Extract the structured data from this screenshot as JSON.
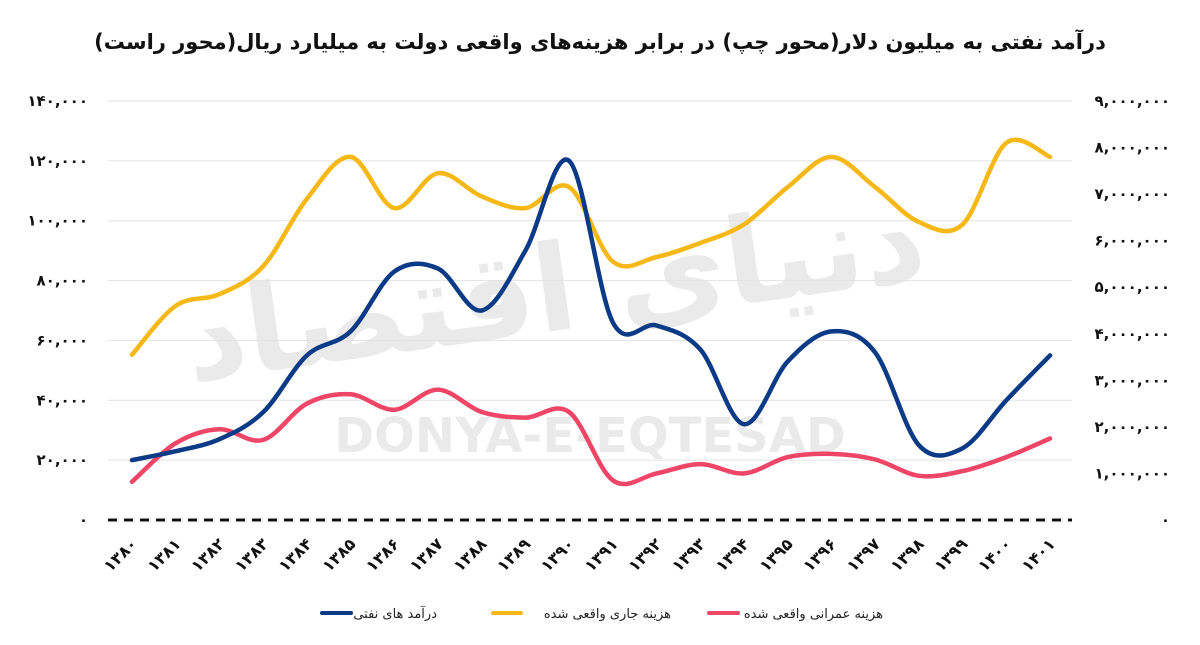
{
  "chart_data": {
    "type": "line",
    "title": "درآمد نفتی به میلیون دلار(محور چپ) در برابر هزینه‌های واقعی دولت به میلیارد ریال(محور راست)",
    "categories": [
      "۱۳۸۰",
      "۱۳۸۱",
      "۱۳۸۲",
      "۱۳۸۳",
      "۱۳۸۴",
      "۱۳۸۵",
      "۱۳۸۶",
      "۱۳۸۷",
      "۱۳۸۸",
      "۱۳۸۹",
      "۱۳۹۰",
      "۱۳۹۱",
      "۱۳۹۲",
      "۱۳۹۳",
      "۱۳۹۴",
      "۱۳۹۵",
      "۱۳۹۶",
      "۱۳۹۷",
      "۱۳۹۸",
      "۱۳۹۹",
      "۱۴۰۰",
      "۱۴۰۱"
    ],
    "left_axis": {
      "ylim": [
        0,
        140000
      ],
      "tick_labels": [
        "۰",
        "۲۰,۰۰۰",
        "۴۰,۰۰۰",
        "۶۰,۰۰۰",
        "۸۰,۰۰۰",
        "۱۰۰,۰۰۰",
        "۱۲۰,۰۰۰",
        "۱۴۰,۰۰۰"
      ]
    },
    "right_axis": {
      "ylim": [
        0,
        9000000
      ],
      "tick_labels": [
        "۰",
        "۱,۰۰۰,۰۰۰",
        "۲,۰۰۰,۰۰۰",
        "۳,۰۰۰,۰۰۰",
        "۴,۰۰۰,۰۰۰",
        "۵,۰۰۰,۰۰۰",
        "۶,۰۰۰,۰۰۰",
        "۷,۰۰۰,۰۰۰",
        "۸,۰۰۰,۰۰۰",
        "۹,۰۰۰,۰۰۰"
      ]
    },
    "grid": true,
    "legend_position": "bottom",
    "series": [
      {
        "name": "درآمد های نفتی",
        "axis": "left",
        "color": "#0b3a86",
        "values": [
          20000,
          23000,
          27000,
          36000,
          55000,
          63000,
          83000,
          84000,
          70000,
          90000,
          120000,
          66000,
          65000,
          57000,
          32000,
          53000,
          63000,
          56000,
          25000,
          24000,
          40000,
          55000
        ]
      },
      {
        "name": "هزینه جاری واقعی شده",
        "axis": "right",
        "color": "#f6b817",
        "values": [
          3550000,
          4600000,
          4850000,
          5450000,
          6900000,
          7800000,
          6700000,
          7450000,
          6950000,
          6700000,
          7150000,
          5550000,
          5650000,
          5950000,
          6350000,
          7150000,
          7800000,
          7150000,
          6400000,
          6350000,
          8100000,
          7800000
        ]
      },
      {
        "name": "هزینه عمرانی واقعی شده",
        "axis": "right",
        "color": "#ef4566",
        "values": [
          820000,
          1650000,
          1950000,
          1720000,
          2500000,
          2700000,
          2370000,
          2800000,
          2320000,
          2200000,
          2320000,
          850000,
          1000000,
          1200000,
          1000000,
          1350000,
          1420000,
          1300000,
          950000,
          1050000,
          1350000,
          1750000
        ]
      }
    ]
  },
  "watermark": {
    "brand": "دنیای اقتصاد",
    "latin": "DONYA-E-EQTESAD"
  }
}
